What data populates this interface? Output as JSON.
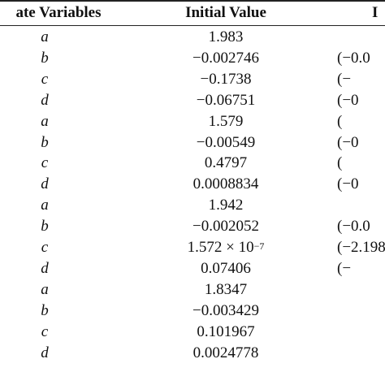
{
  "header": {
    "col1": "ate Variables",
    "col2": "Initial Value",
    "col3": "I"
  },
  "rows": [
    {
      "var": "a",
      "value": "1.983",
      "range": ""
    },
    {
      "var": "b",
      "value": "−0.002746",
      "range": "(−0.0"
    },
    {
      "var": "c",
      "value": "−0.1738",
      "range": "(−"
    },
    {
      "var": "d",
      "value": "−0.06751",
      "range": "(−0"
    },
    {
      "var": "a",
      "value": "1.579",
      "range": "("
    },
    {
      "var": "b",
      "value": "−0.00549",
      "range": "(−0"
    },
    {
      "var": "c",
      "value": "0.4797",
      "range": "("
    },
    {
      "var": "d",
      "value": "0.0008834",
      "range": "(−0"
    },
    {
      "var": "a",
      "value": "1.942",
      "range": ""
    },
    {
      "var": "b",
      "value": "−0.002052",
      "range": "(−0.0"
    },
    {
      "var": "c",
      "value": "1.572 × 10",
      "value_exp": "−7",
      "range": "(−2.198"
    },
    {
      "var": "d",
      "value": "0.07406",
      "range": "(−"
    },
    {
      "var": "a",
      "value": "1.8347",
      "range": ""
    },
    {
      "var": "b",
      "value": "−0.003429",
      "range": ""
    },
    {
      "var": "c",
      "value": "0.101967",
      "range": ""
    },
    {
      "var": "d",
      "value": "0.0024778",
      "range": ""
    }
  ]
}
